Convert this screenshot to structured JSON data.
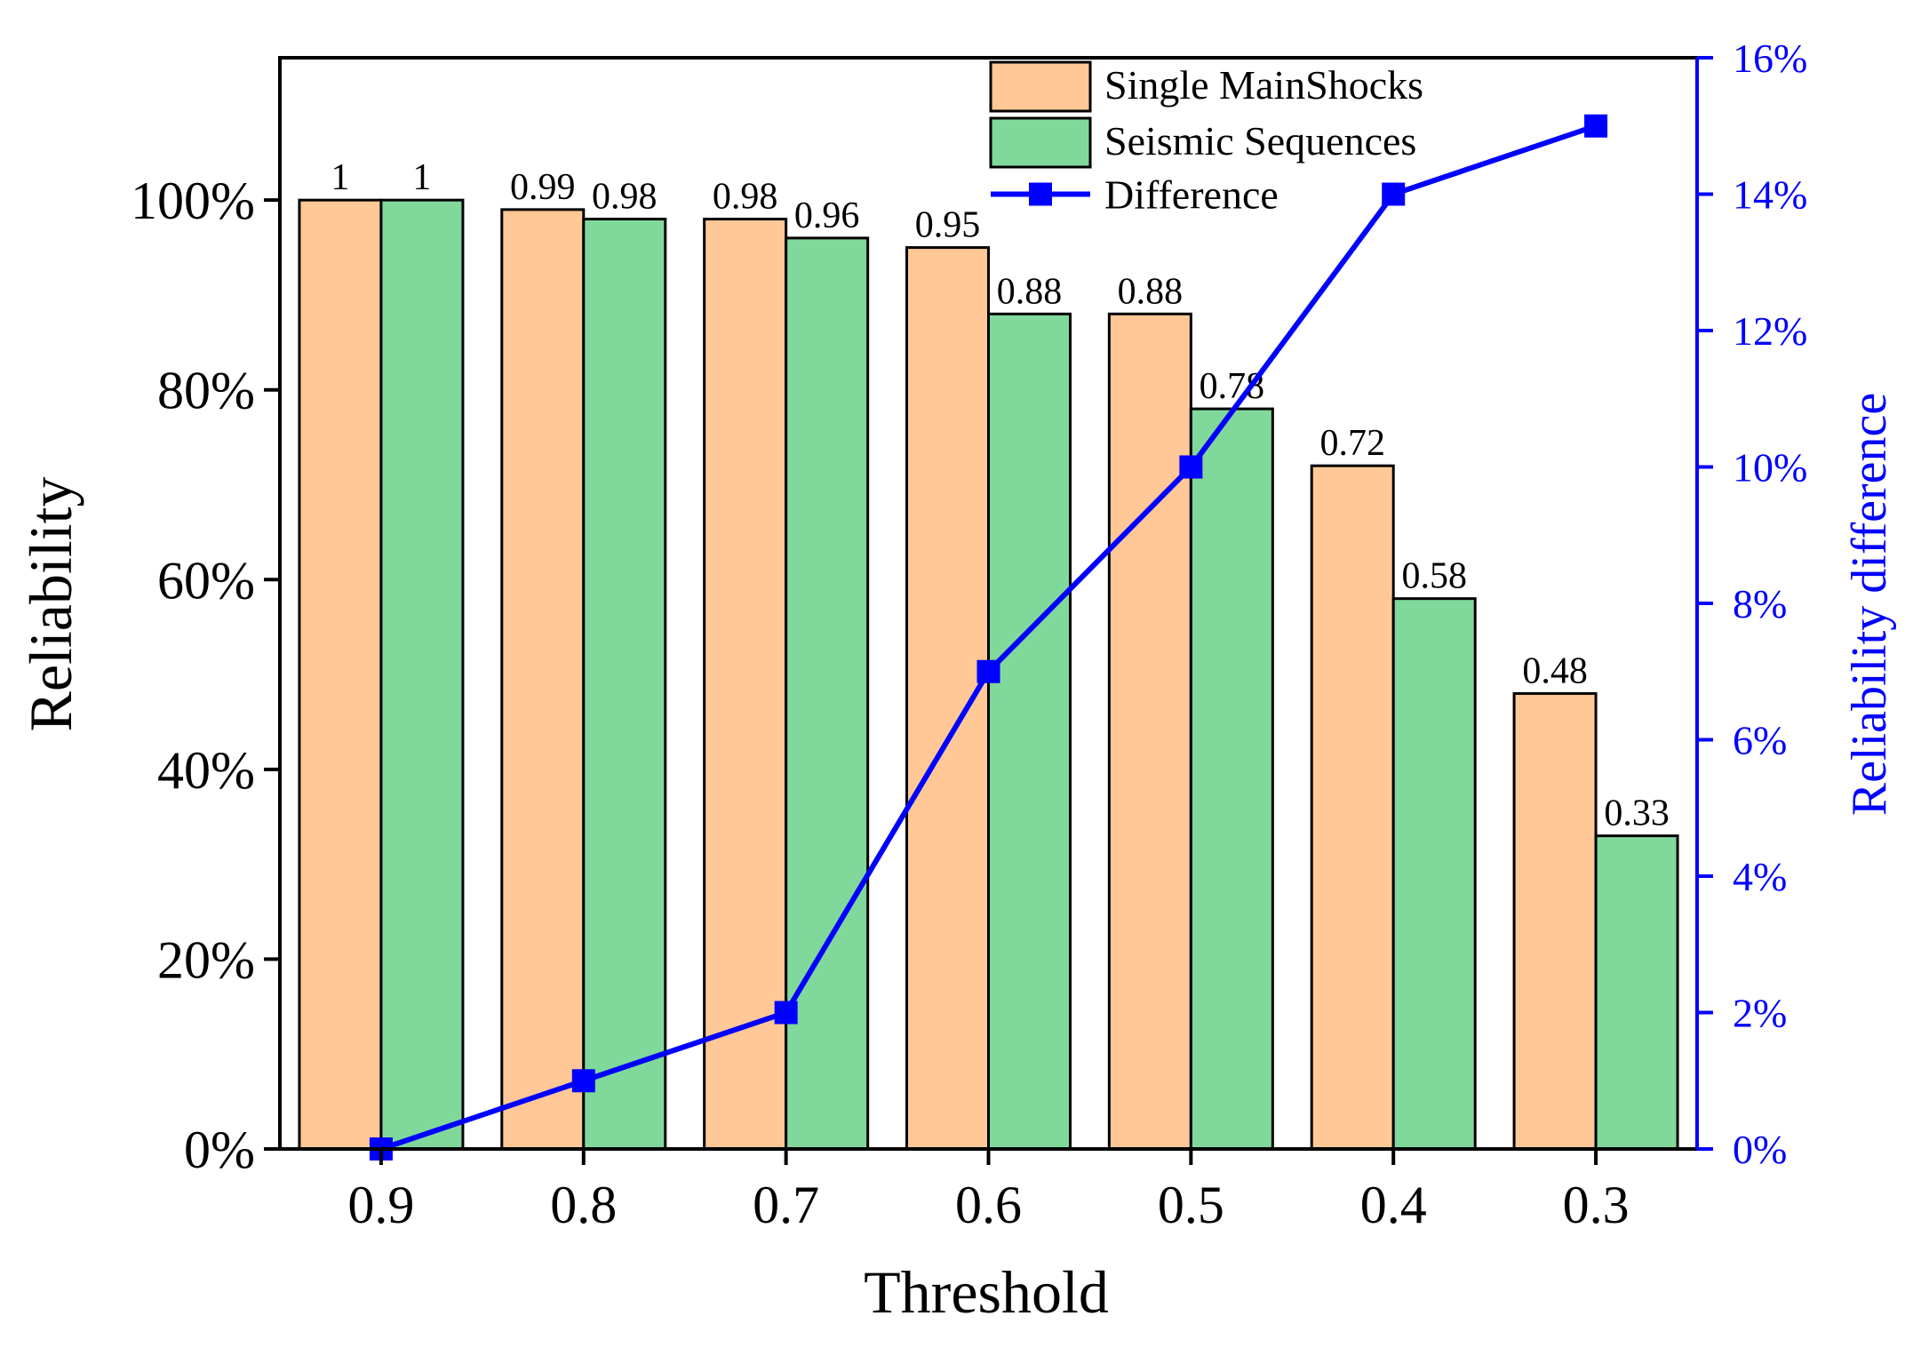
{
  "chart_data": {
    "type": "bar",
    "xlabel": "Threshold",
    "ylabel": "Reliability",
    "y2label": "Reliability difference",
    "categories": [
      "0.9",
      "0.8",
      "0.7",
      "0.6",
      "0.5",
      "0.4",
      "0.3"
    ],
    "ylim": [
      0,
      1.15
    ],
    "yticks": [
      0,
      0.2,
      0.4,
      0.6,
      0.8,
      1.0
    ],
    "ytick_labels": [
      "0%",
      "20%",
      "40%",
      "60%",
      "80%",
      "100%"
    ],
    "y2lim": [
      0,
      0.16
    ],
    "y2ticks": [
      0,
      0.02,
      0.04,
      0.06,
      0.08,
      0.1,
      0.12,
      0.14,
      0.16
    ],
    "y2tick_labels": [
      "0%",
      "2%",
      "4%",
      "6%",
      "8%",
      "10%",
      "12%",
      "14%",
      "16%"
    ],
    "series": [
      {
        "name": "Single MainShocks",
        "kind": "bar",
        "axis": "left",
        "color": "#FFC896",
        "values": [
          1,
          0.99,
          0.98,
          0.95,
          0.88,
          0.72,
          0.48
        ],
        "data_labels": [
          "1",
          "0.99",
          "0.98",
          "0.95",
          "0.88",
          "0.72",
          "0.48"
        ]
      },
      {
        "name": "Seismic Sequences",
        "kind": "bar",
        "axis": "left",
        "color": "#80D99B",
        "values": [
          1,
          0.98,
          0.96,
          0.88,
          0.78,
          0.58,
          0.33
        ],
        "data_labels": [
          "1",
          "0.98",
          "0.96",
          "0.88",
          "0.78",
          "0.58",
          "0.33"
        ]
      },
      {
        "name": "Difference",
        "kind": "line",
        "axis": "right",
        "marker": "square",
        "color": "#0000FF",
        "values": [
          0,
          0.01,
          0.02,
          0.07,
          0.1,
          0.14,
          0.15
        ]
      }
    ],
    "legend_position": "top-right",
    "grid": false
  }
}
